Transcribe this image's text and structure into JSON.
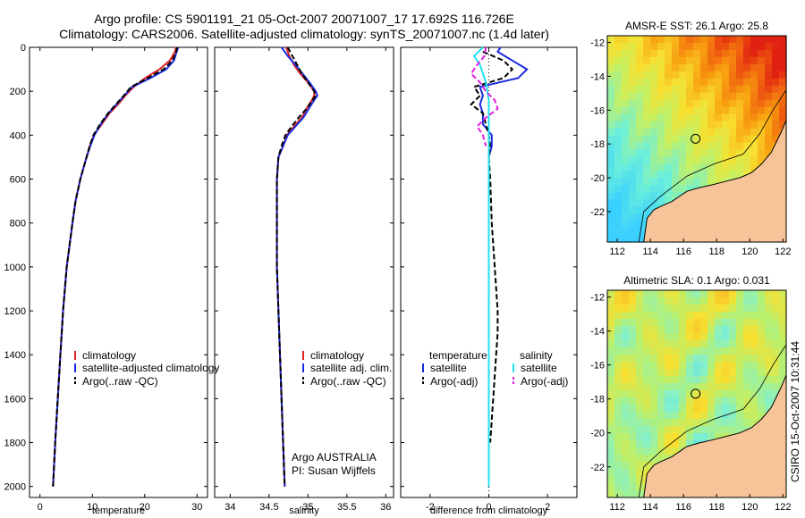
{
  "header": {
    "title_line1": "Argo profile: CS 5901191_21 05-Oct-2007 20071007_17 17.692S 116.726E",
    "title_line2": "Climatology: CARS2006. Satellite-adjusted climatology: synTS_20071007.nc (1.4d later)"
  },
  "colors": {
    "climatology": "#e02020",
    "satellite": "#1a2ce0",
    "argo": "#000000",
    "sal_satellite": "#22e0ee",
    "sal_argo": "#e020e0",
    "land": "#f7c49a"
  },
  "chart_data": [
    {
      "type": "line",
      "id": "temperature",
      "xlabel": "temperature",
      "xlim": [
        -2,
        32
      ],
      "xticks": [
        0,
        10,
        20,
        30
      ],
      "ylim": [
        2050,
        0
      ],
      "yticks": [
        0,
        200,
        400,
        600,
        800,
        1000,
        1200,
        1400,
        1600,
        1800,
        2000
      ],
      "legend": [
        "climatology",
        "satellite-adjusted climatology",
        "Argo(..raw -QC)"
      ],
      "series": [
        {
          "name": "climatology",
          "color": "#e02020",
          "style": "solid",
          "depth": [
            0,
            20,
            60,
            100,
            140,
            180,
            220,
            260,
            300,
            350,
            400,
            450,
            500,
            600,
            700,
            800,
            1000,
            1200,
            1400,
            1600,
            1800,
            2000
          ],
          "values": [
            26,
            25.8,
            24.8,
            22.8,
            20.1,
            17.9,
            16.3,
            14.9,
            13.3,
            11.8,
            10.3,
            9.5,
            8.9,
            7.7,
            6.8,
            6.2,
            5.1,
            4.4,
            3.9,
            3.4,
            2.9,
            2.5
          ]
        },
        {
          "name": "satellite-adjusted climatology",
          "color": "#1a2ce0",
          "style": "solid",
          "depth": [
            0,
            20,
            60,
            100,
            140,
            180,
            220,
            260,
            300,
            350,
            400,
            450,
            500,
            600,
            700,
            800,
            1000,
            1200,
            1400,
            1600,
            1800,
            2000
          ],
          "values": [
            26.4,
            26.1,
            25.6,
            24.1,
            21.1,
            17.6,
            16.1,
            14.6,
            13.1,
            11.6,
            10.4,
            9.6,
            8.9,
            7.7,
            6.8,
            6.2,
            5.1,
            4.4,
            3.9,
            3.4,
            2.9,
            2.5
          ]
        },
        {
          "name": "Argo(..raw -QC)",
          "color": "#000000",
          "style": "dashed",
          "depth": [
            0,
            20,
            60,
            100,
            140,
            180,
            220,
            260,
            300,
            350,
            400,
            450,
            500,
            600,
            700,
            800,
            1000,
            1200,
            1400,
            1600,
            1800,
            2000
          ],
          "values": [
            26.2,
            26,
            25.3,
            23.6,
            20.6,
            17.4,
            16,
            14.5,
            13,
            11.5,
            10.2,
            9.5,
            8.9,
            7.7,
            6.8,
            6.2,
            5.1,
            4.4,
            3.9,
            3.4,
            2.9,
            2.5
          ]
        }
      ]
    },
    {
      "type": "line",
      "id": "salinity",
      "xlabel": "salinity",
      "xlim": [
        33.8,
        36.1
      ],
      "xticks": [
        34,
        34.5,
        35,
        35.5,
        36
      ],
      "ylim": [
        2050,
        0
      ],
      "legend": [
        "climatology",
        "satellite adj. clim.",
        "Argo(..raw -QC)"
      ],
      "annotation": [
        "Argo AUSTRALIA",
        "PI: Susan Wijffels"
      ],
      "series": [
        {
          "name": "climatology",
          "color": "#e02020",
          "style": "solid",
          "depth": [
            0,
            40,
            80,
            120,
            160,
            200,
            220,
            240,
            280,
            320,
            360,
            400,
            450,
            500,
            600,
            800,
            1000,
            1200,
            1500,
            1800,
            2000
          ],
          "values": [
            34.72,
            34.76,
            34.82,
            34.9,
            35.0,
            35.08,
            35.08,
            35.05,
            34.98,
            34.92,
            34.82,
            34.73,
            34.68,
            34.62,
            34.6,
            34.6,
            34.6,
            34.62,
            34.65,
            34.68,
            34.7
          ]
        },
        {
          "name": "satellite adj. clim.",
          "color": "#1a2ce0",
          "style": "solid",
          "depth": [
            0,
            40,
            80,
            120,
            160,
            200,
            220,
            240,
            280,
            320,
            360,
            400,
            450,
            500,
            600,
            800,
            1000,
            1200,
            1500,
            1800,
            2000
          ],
          "values": [
            34.66,
            34.74,
            34.84,
            34.93,
            35.02,
            35.1,
            35.12,
            35.08,
            35.01,
            34.94,
            34.84,
            34.74,
            34.68,
            34.62,
            34.6,
            34.6,
            34.6,
            34.62,
            34.65,
            34.68,
            34.7
          ]
        },
        {
          "name": "Argo(..raw -QC)",
          "color": "#000000",
          "style": "dashed",
          "depth": [
            0,
            40,
            80,
            120,
            160,
            200,
            220,
            240,
            280,
            320,
            360,
            400,
            450,
            500,
            600,
            800,
            1000,
            1200,
            1500,
            1800,
            2000
          ],
          "values": [
            34.74,
            34.8,
            34.86,
            34.92,
            35.0,
            35.08,
            35.1,
            35.06,
            34.98,
            34.88,
            34.79,
            34.71,
            34.66,
            34.62,
            34.6,
            34.6,
            34.6,
            34.62,
            34.65,
            34.68,
            34.7
          ]
        }
      ]
    },
    {
      "type": "line",
      "id": "difference",
      "xlabel": "difference from climatology",
      "xlim": [
        -3,
        3
      ],
      "xticks": [
        -2,
        0,
        2
      ],
      "ylim": [
        2050,
        0
      ],
      "legend_left_title": "temperature",
      "legend_right_title": "salinity",
      "legend": [
        "satellite",
        "Argo(-adj)",
        "satellite",
        "Argo(-adj)"
      ],
      "series": [
        {
          "name": "temperature satellite",
          "color": "#1a2ce0",
          "style": "solid",
          "depth": [
            0,
            20,
            60,
            100,
            140,
            180,
            220,
            260,
            300,
            350,
            400,
            450,
            500,
            600,
            800,
            1000,
            1400,
            2000
          ],
          "values": [
            0.4,
            0.3,
            0.8,
            1.3,
            1.0,
            -0.3,
            -0.2,
            -0.3,
            -0.2,
            -0.2,
            0.1,
            0.1,
            0.0,
            0.0,
            0.0,
            0.0,
            0.0,
            0.0
          ]
        },
        {
          "name": "temperature Argo(-adj)",
          "color": "#000000",
          "style": "dashed",
          "depth": [
            20,
            60,
            100,
            140,
            180,
            220,
            260,
            300,
            350,
            400,
            450,
            500,
            600,
            800,
            1000,
            1200,
            1300,
            1400,
            1600,
            1800
          ],
          "values": [
            -0.2,
            0.5,
            0.8,
            0.5,
            -0.5,
            -0.3,
            -0.6,
            -0.2,
            -0.1,
            0.0,
            0.05,
            0.0,
            0.05,
            0.1,
            0.2,
            0.3,
            0.3,
            0.25,
            0.15,
            0.05
          ]
        },
        {
          "name": "salinity satellite",
          "color": "#22e0ee",
          "style": "solid",
          "depth": [
            0,
            40,
            80,
            160,
            240,
            320,
            400,
            600,
            800,
            1000,
            1400,
            2000
          ],
          "values": [
            -0.2,
            -0.5,
            -0.3,
            -0.1,
            0.0,
            0.0,
            0.0,
            0.0,
            0.0,
            0.0,
            0.0,
            0.0
          ]
        },
        {
          "name": "salinity Argo(-adj)",
          "color": "#e020e0",
          "style": "dashed",
          "depth": [
            0,
            40,
            80,
            120,
            160,
            200,
            240,
            280,
            320,
            360,
            400,
            450
          ],
          "values": [
            -0.1,
            -0.15,
            -0.4,
            -0.6,
            -0.3,
            -0.1,
            0.2,
            0.3,
            -0.1,
            -0.4,
            -0.2,
            -0.1
          ]
        }
      ]
    }
  ],
  "maps": [
    {
      "id": "sst",
      "title": "AMSR-E SST: 26.1 Argo: 25.8",
      "xticks": [
        112,
        114,
        116,
        118,
        120,
        122
      ],
      "yticks": [
        -12,
        -14,
        -16,
        -18,
        -20,
        -22
      ],
      "float_lon": 116.726,
      "float_lat": -17.692
    },
    {
      "id": "sla",
      "title": "Altimetric SLA: 0.1 Argo: 0.031",
      "xticks": [
        112,
        114,
        116,
        118,
        120,
        122
      ],
      "yticks": [
        -12,
        -14,
        -16,
        -18,
        -20,
        -22
      ],
      "float_lon": 116.726,
      "float_lat": -17.692
    }
  ],
  "footer": {
    "stamp": "CSIRO 15-Oct-2007 10:31:44"
  }
}
